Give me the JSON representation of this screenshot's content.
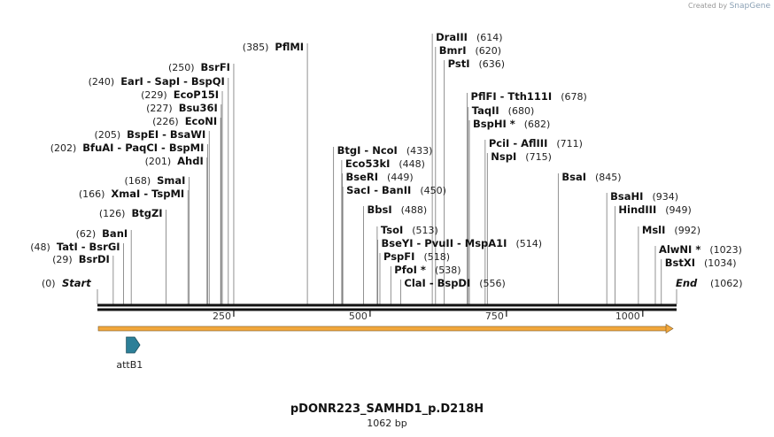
{
  "header": {
    "credit_prefix": "Created by",
    "credit_brand": "SnapGene"
  },
  "map": {
    "name": "pDONR223_SAMHD1_p.D218H",
    "length_label": "1062 bp",
    "length": 1062,
    "start_label": "Start",
    "end_label": "End",
    "start_pos": "(0)",
    "end_pos": "(1062)",
    "ticks": [
      {
        "pos": 250,
        "label": "250"
      },
      {
        "pos": 500,
        "label": "500"
      },
      {
        "pos": 750,
        "label": "750"
      },
      {
        "pos": 1000,
        "label": "1000"
      }
    ],
    "colors": {
      "backbone": "#111111",
      "feature_fill": "#f2a73b",
      "feature_outline": "#7a5a2a",
      "attb1_fill": "#2c7f98"
    }
  },
  "features": [
    {
      "name": "attB1",
      "start": 53,
      "end": 78
    }
  ],
  "enzymes_left": [
    {
      "label": "PflMI",
      "pos_text": "(385)",
      "site": 385
    },
    {
      "label": "BsrFI",
      "pos_text": "(250)",
      "site": 250
    },
    {
      "label": "EarI - SapI - BspQI",
      "pos_text": "(240)",
      "site": 240
    },
    {
      "label": "EcoP15I",
      "pos_text": "(229)",
      "site": 229
    },
    {
      "label": "Bsu36I",
      "pos_text": "(227)",
      "site": 227
    },
    {
      "label": "EcoNI",
      "pos_text": "(226)",
      "site": 226
    },
    {
      "label": "BspEI - BsaWI",
      "pos_text": "(205)",
      "site": 205
    },
    {
      "label": "BfuAI - PaqCI - BspMI",
      "pos_text": "(202)",
      "site": 202
    },
    {
      "label": "AhdI",
      "pos_text": "(201)",
      "site": 201
    },
    {
      "label": "SmaI",
      "pos_text": "(168)",
      "site": 168
    },
    {
      "label": "XmaI - TspMI",
      "pos_text": "(166)",
      "site": 166
    },
    {
      "label": "BtgZI",
      "pos_text": "(126)",
      "site": 126
    },
    {
      "label": "BanI",
      "pos_text": "(62)",
      "site": 62
    },
    {
      "label": "TatI - BsrGI",
      "pos_text": "(48)",
      "site": 48
    },
    {
      "label": "BsrDI",
      "pos_text": "(29)",
      "site": 29
    }
  ],
  "enzymes_right": [
    {
      "label": "DraIII",
      "pos_text": "(614)",
      "site": 614
    },
    {
      "label": "BmrI",
      "pos_text": "(620)",
      "site": 620
    },
    {
      "label": "PstI",
      "pos_text": "(636)",
      "site": 636
    },
    {
      "label": "PflFI - Tth111I",
      "pos_text": "(678)",
      "site": 678
    },
    {
      "label": "TaqII",
      "pos_text": "(680)",
      "site": 680
    },
    {
      "label": "BspHI *",
      "pos_text": "(682)",
      "site": 682
    },
    {
      "label": "PciI - AflIII",
      "pos_text": "(711)",
      "site": 711
    },
    {
      "label": "NspI",
      "pos_text": "(715)",
      "site": 715
    },
    {
      "label": "BtgI - NcoI",
      "pos_text": "(433)",
      "site": 433
    },
    {
      "label": "Eco53kI",
      "pos_text": "(448)",
      "site": 448
    },
    {
      "label": "BseRI",
      "pos_text": "(449)",
      "site": 449
    },
    {
      "label": "SacI - BanII",
      "pos_text": "(450)",
      "site": 450
    },
    {
      "label": "BbsI",
      "pos_text": "(488)",
      "site": 488
    },
    {
      "label": "TsoI",
      "pos_text": "(513)",
      "site": 513
    },
    {
      "label": "BseYI - PvuII - MspA1I",
      "pos_text": "(514)",
      "site": 514
    },
    {
      "label": "PspFI",
      "pos_text": "(518)",
      "site": 518
    },
    {
      "label": "PfoI *",
      "pos_text": "(538)",
      "site": 538
    },
    {
      "label": "ClaI - BspDI",
      "pos_text": "(556)",
      "site": 556
    },
    {
      "label": "BsaI",
      "pos_text": "(845)",
      "site": 845
    },
    {
      "label": "BsaHI",
      "pos_text": "(934)",
      "site": 934
    },
    {
      "label": "HindIII",
      "pos_text": "(949)",
      "site": 949
    },
    {
      "label": "MslI",
      "pos_text": "(992)",
      "site": 992
    },
    {
      "label": "AlwNI *",
      "pos_text": "(1023)",
      "site": 1023
    },
    {
      "label": "BstXI",
      "pos_text": "(1034)",
      "site": 1034
    }
  ]
}
